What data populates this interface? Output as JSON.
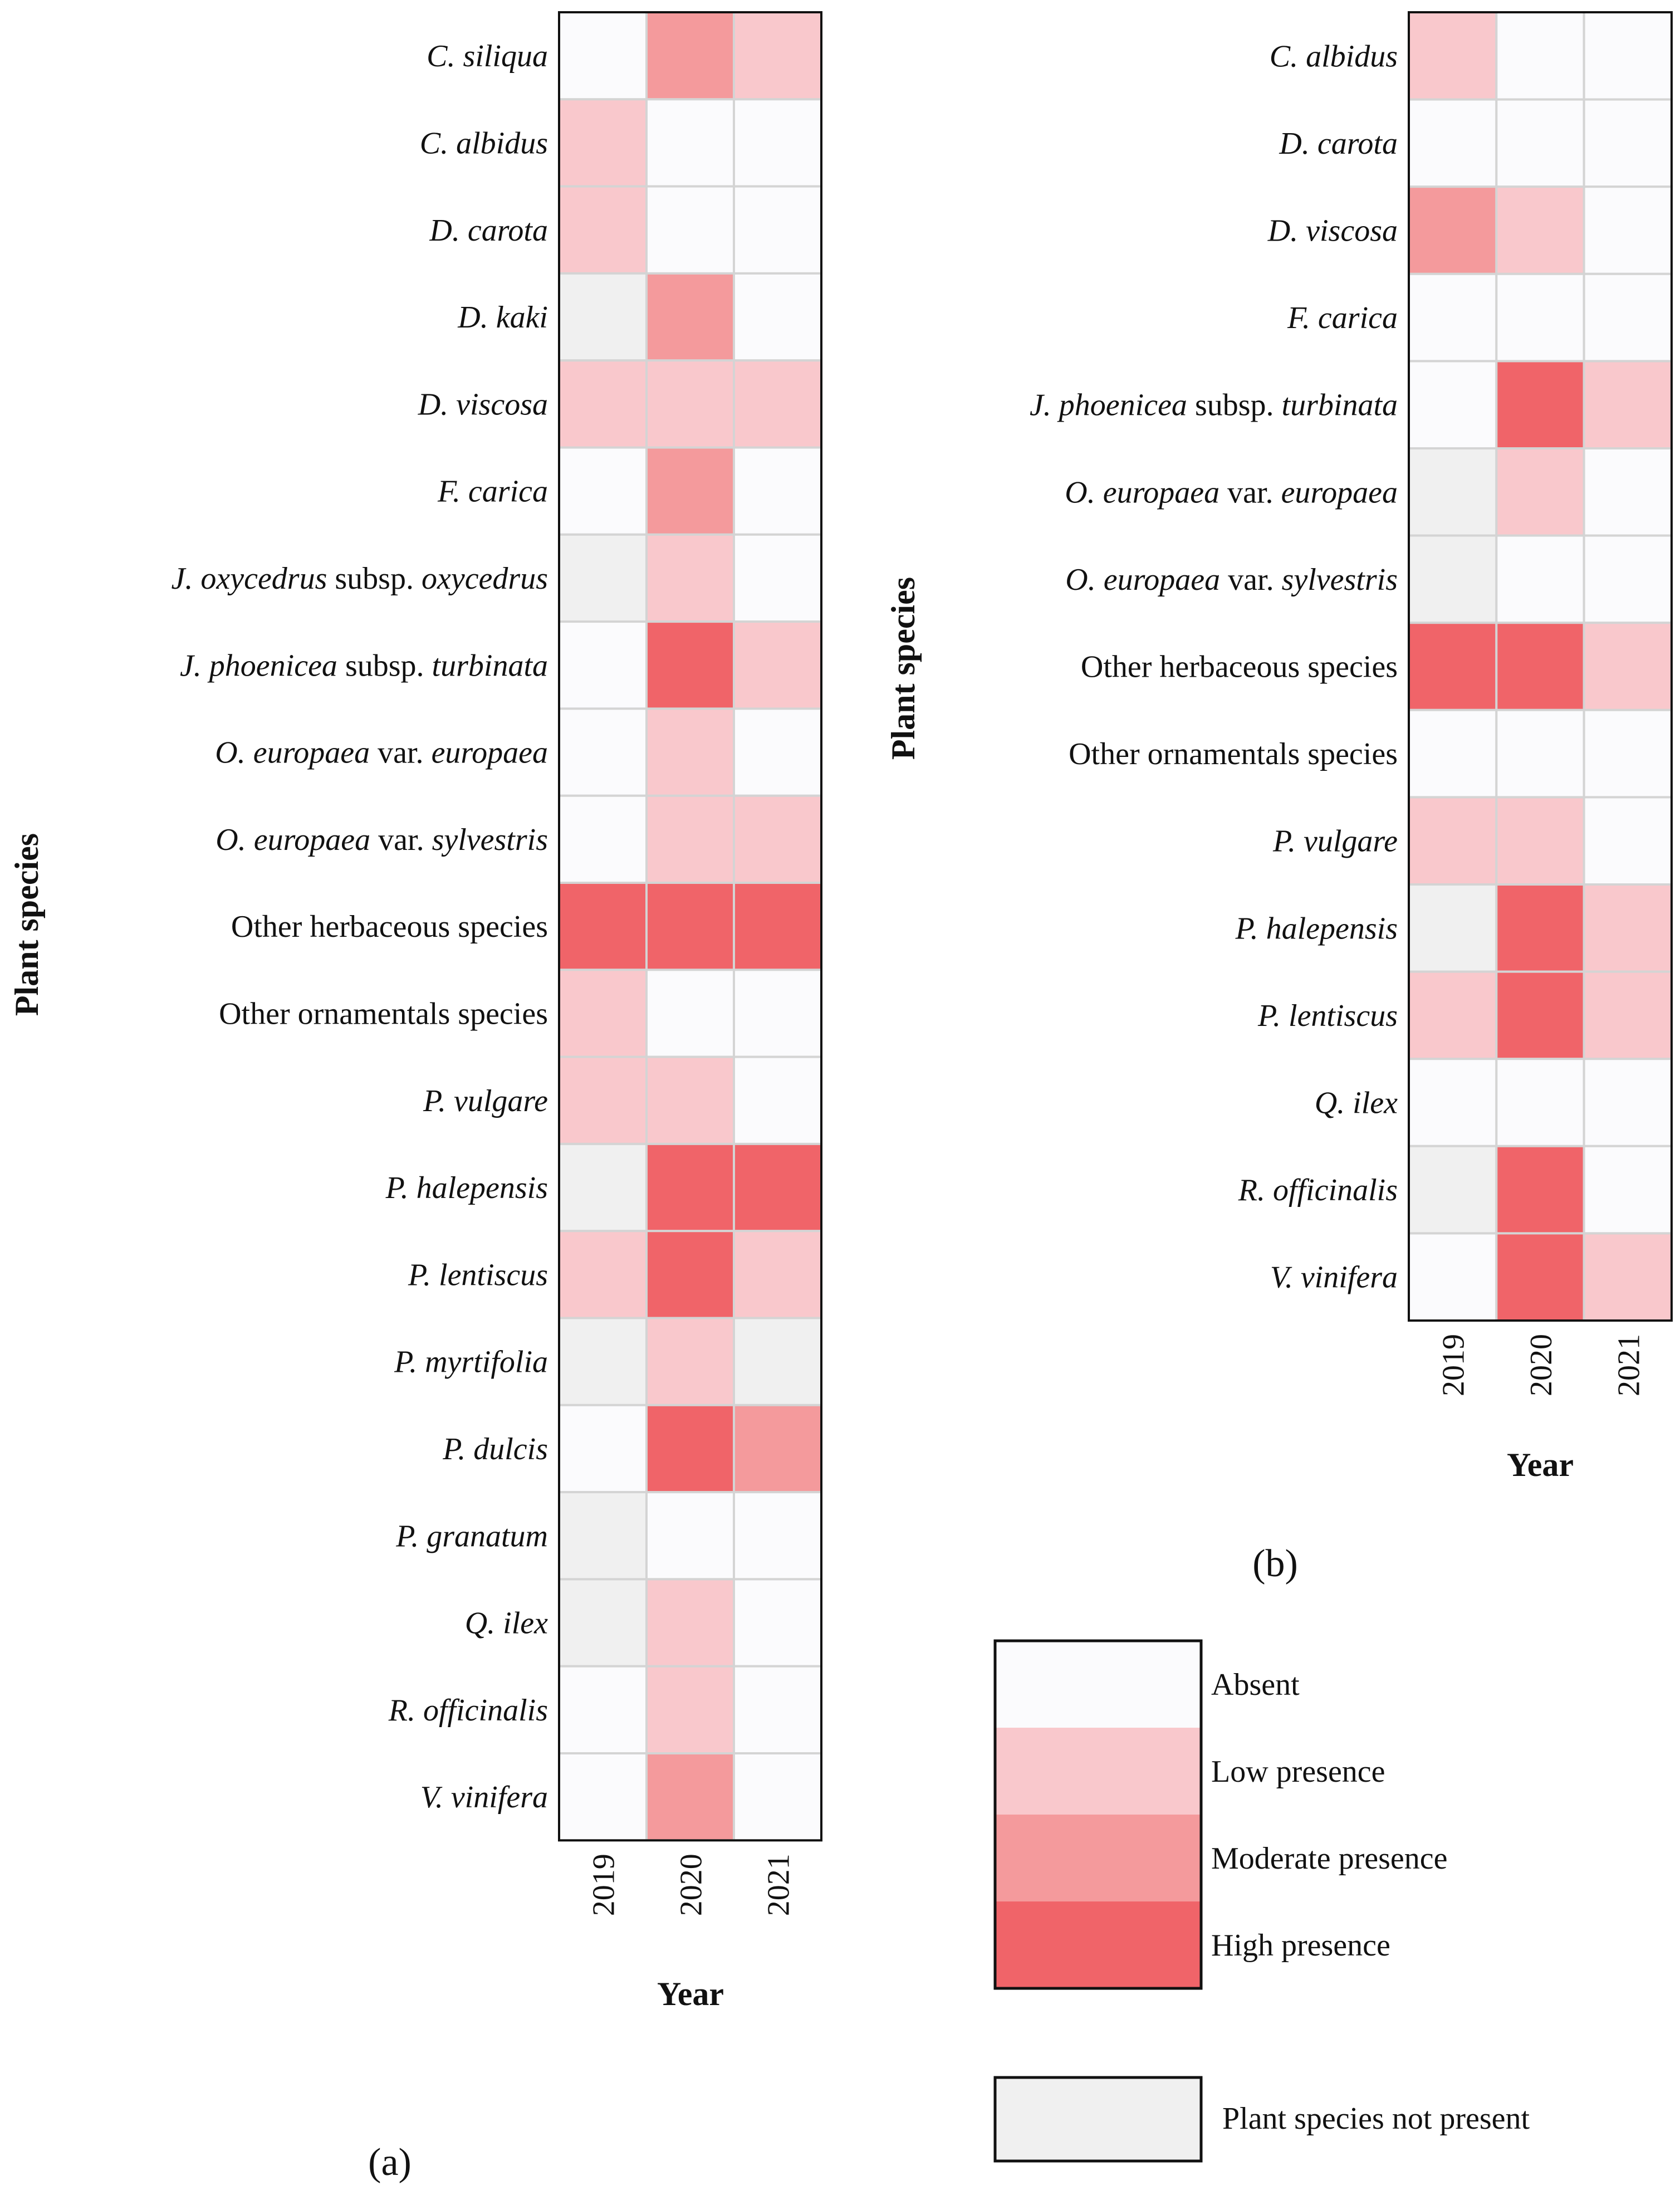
{
  "colors": {
    "absent": "#fbfbfd",
    "low": "#f9c8cc",
    "moderate": "#f49a9c",
    "high": "#f06469",
    "not_present": "#f0f0f0",
    "gridline": "#d4d4d4",
    "frame": "#111111"
  },
  "legend": {
    "items": [
      {
        "key": "absent",
        "label": "Absent"
      },
      {
        "key": "low",
        "label": "Low presence"
      },
      {
        "key": "moderate",
        "label": "Moderate presence"
      },
      {
        "key": "high",
        "label": "High presence"
      }
    ],
    "not_present": {
      "key": "not_present",
      "label": "Plant species not present"
    }
  },
  "chart_data": [
    {
      "type": "heatmap",
      "panel_label": "(a)",
      "xlabel": "Year",
      "ylabel": "Plant species",
      "years": [
        "2019",
        "2020",
        "2021"
      ],
      "species": [
        {
          "parts": [
            {
              "t": "C. siliqua",
              "i": true
            }
          ],
          "values": [
            "absent",
            "moderate",
            "low"
          ]
        },
        {
          "parts": [
            {
              "t": "C. albidus",
              "i": true
            }
          ],
          "values": [
            "low",
            "absent",
            "absent"
          ]
        },
        {
          "parts": [
            {
              "t": "D. carota",
              "i": true
            }
          ],
          "values": [
            "low",
            "absent",
            "absent"
          ]
        },
        {
          "parts": [
            {
              "t": "D. kaki",
              "i": true
            }
          ],
          "values": [
            "not_present",
            "moderate",
            "absent"
          ]
        },
        {
          "parts": [
            {
              "t": "D. viscosa",
              "i": true
            }
          ],
          "values": [
            "low",
            "low",
            "low"
          ]
        },
        {
          "parts": [
            {
              "t": "F. carica",
              "i": true
            }
          ],
          "values": [
            "absent",
            "moderate",
            "absent"
          ]
        },
        {
          "parts": [
            {
              "t": "J. oxycedrus",
              "i": true
            },
            {
              "t": " subsp. ",
              "i": false
            },
            {
              "t": "oxycedrus",
              "i": true
            }
          ],
          "values": [
            "not_present",
            "low",
            "absent"
          ]
        },
        {
          "parts": [
            {
              "t": "J. phoenicea",
              "i": true
            },
            {
              "t": " subsp. ",
              "i": false
            },
            {
              "t": "turbinata",
              "i": true
            }
          ],
          "values": [
            "absent",
            "high",
            "low"
          ]
        },
        {
          "parts": [
            {
              "t": "O. europaea",
              "i": true
            },
            {
              "t": " var. ",
              "i": false
            },
            {
              "t": "europaea",
              "i": true
            }
          ],
          "values": [
            "absent",
            "low",
            "absent"
          ]
        },
        {
          "parts": [
            {
              "t": "O. europaea",
              "i": true
            },
            {
              "t": " var. ",
              "i": false
            },
            {
              "t": "sylvestris",
              "i": true
            }
          ],
          "values": [
            "absent",
            "low",
            "low"
          ]
        },
        {
          "parts": [
            {
              "t": "Other herbaceous species",
              "i": false
            }
          ],
          "values": [
            "high",
            "high",
            "high"
          ]
        },
        {
          "parts": [
            {
              "t": "Other ornamentals species",
              "i": false
            }
          ],
          "values": [
            "low",
            "absent",
            "absent"
          ]
        },
        {
          "parts": [
            {
              "t": "P. vulgare",
              "i": true
            }
          ],
          "values": [
            "low",
            "low",
            "absent"
          ]
        },
        {
          "parts": [
            {
              "t": "P. halepensis",
              "i": true
            }
          ],
          "values": [
            "not_present",
            "high",
            "high"
          ]
        },
        {
          "parts": [
            {
              "t": "P. lentiscus",
              "i": true
            }
          ],
          "values": [
            "low",
            "high",
            "low"
          ]
        },
        {
          "parts": [
            {
              "t": "P. myrtifolia",
              "i": true
            }
          ],
          "values": [
            "not_present",
            "low",
            "not_present"
          ]
        },
        {
          "parts": [
            {
              "t": "P. dulcis",
              "i": true
            }
          ],
          "values": [
            "absent",
            "high",
            "moderate"
          ]
        },
        {
          "parts": [
            {
              "t": "P. granatum",
              "i": true
            }
          ],
          "values": [
            "not_present",
            "absent",
            "absent"
          ]
        },
        {
          "parts": [
            {
              "t": "Q. ilex",
              "i": true
            }
          ],
          "values": [
            "not_present",
            "low",
            "absent"
          ]
        },
        {
          "parts": [
            {
              "t": "R. officinalis",
              "i": true
            }
          ],
          "values": [
            "absent",
            "low",
            "absent"
          ]
        },
        {
          "parts": [
            {
              "t": "V. vinifera",
              "i": true
            }
          ],
          "values": [
            "absent",
            "moderate",
            "absent"
          ]
        }
      ]
    },
    {
      "type": "heatmap",
      "panel_label": "(b)",
      "xlabel": "Year",
      "ylabel": "Plant species",
      "years": [
        "2019",
        "2020",
        "2021"
      ],
      "species": [
        {
          "parts": [
            {
              "t": "C. albidus",
              "i": true
            }
          ],
          "values": [
            "low",
            "absent",
            "absent"
          ]
        },
        {
          "parts": [
            {
              "t": "D. carota",
              "i": true
            }
          ],
          "values": [
            "absent",
            "absent",
            "absent"
          ]
        },
        {
          "parts": [
            {
              "t": "D. viscosa",
              "i": true
            }
          ],
          "values": [
            "moderate",
            "low",
            "absent"
          ]
        },
        {
          "parts": [
            {
              "t": "F. carica",
              "i": true
            }
          ],
          "values": [
            "absent",
            "absent",
            "absent"
          ]
        },
        {
          "parts": [
            {
              "t": "J. phoenicea",
              "i": true
            },
            {
              "t": " subsp. ",
              "i": false
            },
            {
              "t": "turbinata",
              "i": true
            }
          ],
          "values": [
            "absent",
            "high",
            "low"
          ]
        },
        {
          "parts": [
            {
              "t": "O. europaea",
              "i": true
            },
            {
              "t": " var. ",
              "i": false
            },
            {
              "t": "europaea",
              "i": true
            }
          ],
          "values": [
            "not_present",
            "low",
            "absent"
          ]
        },
        {
          "parts": [
            {
              "t": "O. europaea",
              "i": true
            },
            {
              "t": " var. ",
              "i": false
            },
            {
              "t": "sylvestris",
              "i": true
            }
          ],
          "values": [
            "not_present",
            "absent",
            "absent"
          ]
        },
        {
          "parts": [
            {
              "t": "Other herbaceous species",
              "i": false
            }
          ],
          "values": [
            "high",
            "high",
            "low"
          ]
        },
        {
          "parts": [
            {
              "t": "Other ornamentals species",
              "i": false
            }
          ],
          "values": [
            "absent",
            "absent",
            "absent"
          ]
        },
        {
          "parts": [
            {
              "t": "P. vulgare",
              "i": true
            }
          ],
          "values": [
            "low",
            "low",
            "absent"
          ]
        },
        {
          "parts": [
            {
              "t": "P. halepensis",
              "i": true
            }
          ],
          "values": [
            "not_present",
            "high",
            "low"
          ]
        },
        {
          "parts": [
            {
              "t": "P. lentiscus",
              "i": true
            }
          ],
          "values": [
            "low",
            "high",
            "low"
          ]
        },
        {
          "parts": [
            {
              "t": "Q. ilex",
              "i": true
            }
          ],
          "values": [
            "absent",
            "absent",
            "absent"
          ]
        },
        {
          "parts": [
            {
              "t": "R. officinalis",
              "i": true
            }
          ],
          "values": [
            "not_present",
            "high",
            "absent"
          ]
        },
        {
          "parts": [
            {
              "t": "V. vinifera",
              "i": true
            }
          ],
          "values": [
            "absent",
            "high",
            "low"
          ]
        }
      ]
    }
  ]
}
